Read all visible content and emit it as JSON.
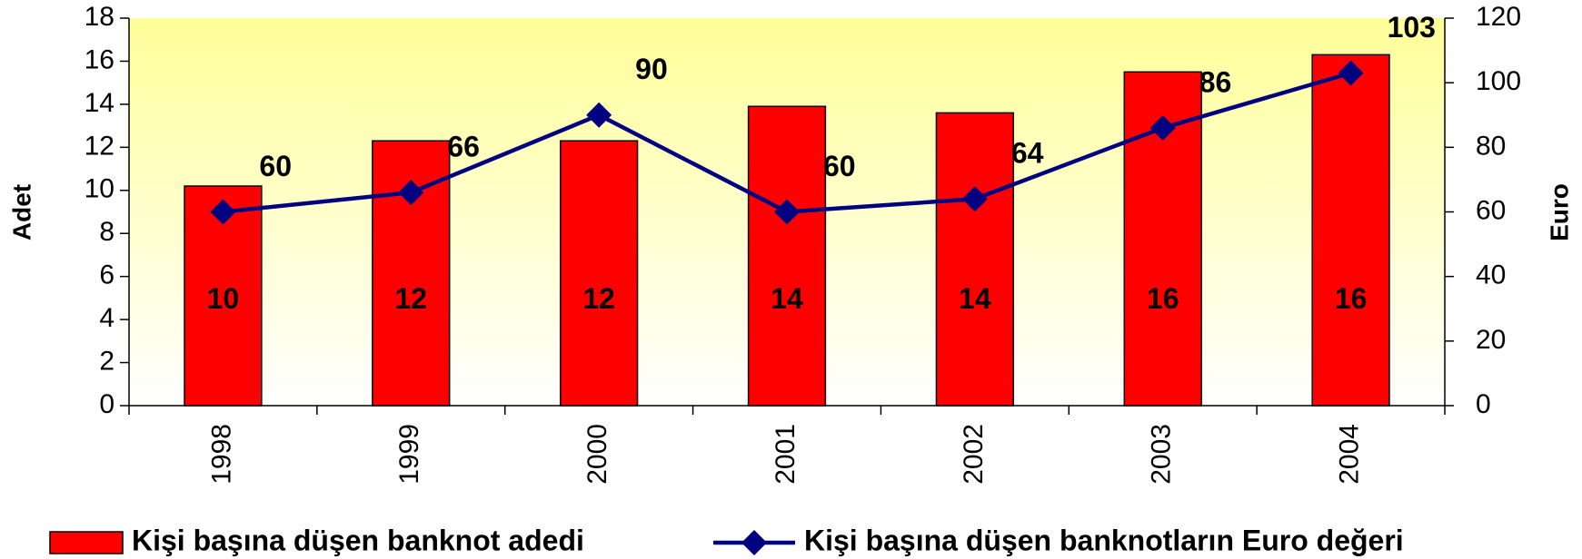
{
  "chart_data": {
    "type": "bar",
    "categories": [
      "1998",
      "1999",
      "2000",
      "2001",
      "2002",
      "2003",
      "2004"
    ],
    "series": [
      {
        "name": "Kişi başına düşen banknot adedi",
        "type": "bar",
        "color": "#ff0000",
        "values": [
          10.2,
          12.3,
          12.3,
          13.9,
          13.6,
          15.5,
          16.3
        ],
        "value_labels": [
          "10",
          "12",
          "12",
          "14",
          "14",
          "16",
          "16"
        ]
      },
      {
        "name": "Kişi başına düşen banknotların Euro değeri",
        "type": "line",
        "axis": "y2",
        "color": "#000080",
        "label_color": "#333399",
        "values": [
          60,
          66,
          90,
          60,
          64,
          86,
          103
        ]
      }
    ],
    "ylabel": "Adet",
    "y2label": "Euro",
    "ylim": [
      0,
      18
    ],
    "yticks": [
      0,
      2,
      4,
      6,
      8,
      10,
      12,
      14,
      16,
      18
    ],
    "y2lim": [
      0,
      120
    ],
    "y2ticks": [
      0,
      20,
      40,
      60,
      80,
      100,
      120
    ],
    "background": [
      "#ffff99",
      "#ffffff"
    ]
  }
}
